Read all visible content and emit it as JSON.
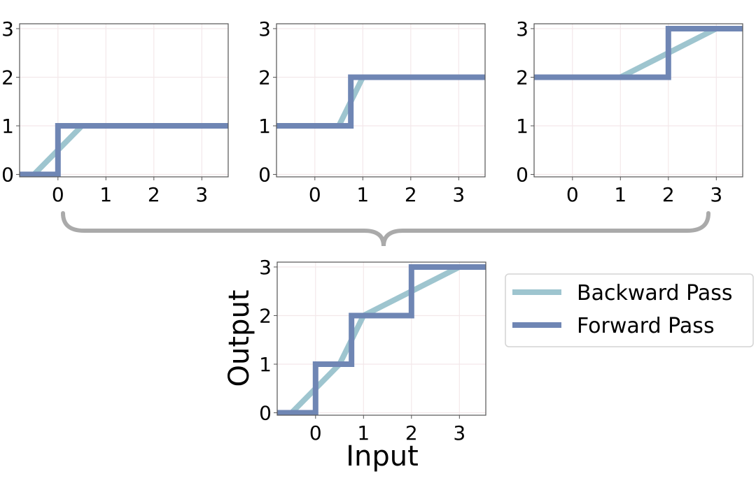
{
  "chart_data": [
    {
      "type": "line",
      "xlim": [
        -0.8,
        3.55
      ],
      "ylim": [
        -0.05,
        3.1
      ],
      "x_ticks": [
        "0",
        "1",
        "2",
        "3"
      ],
      "y_ticks": [
        "0",
        "1",
        "2",
        "3"
      ],
      "grid": true,
      "series": [
        {
          "name": "Backward Pass",
          "x": [
            -0.8,
            -0.5,
            0.5,
            3.55
          ],
          "y": [
            0,
            0,
            1,
            1
          ]
        },
        {
          "name": "Forward Pass",
          "x": [
            -0.8,
            0,
            0,
            3.55
          ],
          "y": [
            0,
            0,
            1,
            1
          ]
        }
      ]
    },
    {
      "type": "line",
      "xlim": [
        -0.8,
        3.55
      ],
      "ylim": [
        -0.05,
        3.1
      ],
      "x_ticks": [
        "0",
        "1",
        "2",
        "3"
      ],
      "y_ticks": [
        "0",
        "1",
        "2",
        "3"
      ],
      "grid": true,
      "series": [
        {
          "name": "Backward Pass",
          "x": [
            -0.8,
            0.5,
            1.0,
            3.55
          ],
          "y": [
            1,
            1,
            2,
            2
          ]
        },
        {
          "name": "Forward Pass",
          "x": [
            -0.8,
            0.75,
            0.75,
            3.55
          ],
          "y": [
            1,
            1,
            2,
            2
          ]
        }
      ]
    },
    {
      "type": "line",
      "xlim": [
        -0.8,
        3.55
      ],
      "ylim": [
        -0.05,
        3.1
      ],
      "x_ticks": [
        "0",
        "1",
        "2",
        "3"
      ],
      "y_ticks": [
        "0",
        "1",
        "2",
        "3"
      ],
      "grid": true,
      "series": [
        {
          "name": "Backward Pass",
          "x": [
            -0.8,
            1.0,
            3.0,
            3.55
          ],
          "y": [
            2,
            2,
            3,
            3
          ]
        },
        {
          "name": "Forward Pass",
          "x": [
            -0.8,
            2.0,
            2.0,
            3.55
          ],
          "y": [
            2,
            2,
            3,
            3
          ]
        }
      ]
    },
    {
      "type": "line",
      "xlabel": "Input",
      "ylabel": "Output",
      "xlim": [
        -0.8,
        3.55
      ],
      "ylim": [
        -0.05,
        3.1
      ],
      "x_ticks": [
        "0",
        "1",
        "2",
        "3"
      ],
      "y_ticks": [
        "0",
        "1",
        "2",
        "3"
      ],
      "grid": true,
      "legend": "right",
      "series": [
        {
          "name": "Backward Pass",
          "x": [
            -0.8,
            -0.5,
            0.5,
            1.0,
            3.0,
            3.55
          ],
          "y": [
            0,
            0,
            1,
            2,
            3,
            3
          ]
        },
        {
          "name": "Forward Pass",
          "x": [
            -0.8,
            0,
            0,
            0.75,
            0.75,
            2.0,
            2.0,
            3.55
          ],
          "y": [
            0,
            0,
            1,
            1,
            2,
            2,
            3,
            3
          ]
        }
      ]
    }
  ],
  "legend": {
    "items": [
      {
        "label": "Backward Pass",
        "color": "#9ec5cf"
      },
      {
        "label": "Forward Pass",
        "color": "#6f86b4"
      }
    ]
  },
  "colors": {
    "backward": "#9ec5cf",
    "forward": "#6f86b4",
    "brace": "#aaaaaa",
    "grid": "#f3e8ea",
    "frame": "#555555"
  }
}
